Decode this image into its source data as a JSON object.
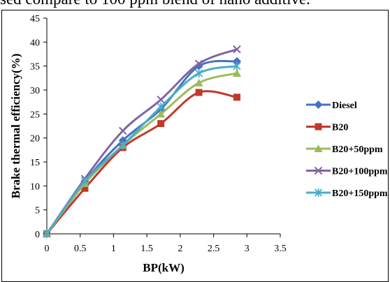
{
  "caption": "sed compare to 100 ppm blend of nano additive.",
  "chart_data": {
    "type": "line",
    "xlabel": "BP(kW)",
    "ylabel": "Brake  thermal   efficiency(%)",
    "xlim": [
      0,
      3.5
    ],
    "ylim": [
      0,
      45
    ],
    "xticks": [
      "0",
      "0.5",
      "1",
      "1.5",
      "2",
      "2.5",
      "3",
      "3.5"
    ],
    "yticks": [
      "0",
      "5",
      "10",
      "15",
      "20",
      "25",
      "30",
      "35",
      "40",
      "45"
    ],
    "x": [
      0,
      0.57,
      1.14,
      1.71,
      2.28,
      2.85
    ],
    "grid": false,
    "legend_position": "right",
    "series": [
      {
        "name": "Diesel",
        "color": "#4472C4",
        "marker": "diamond",
        "values": [
          0,
          11,
          19.5,
          26,
          35,
          36
        ]
      },
      {
        "name": "B20",
        "color": "#C0392B",
        "marker": "square",
        "values": [
          0,
          9.5,
          18,
          23,
          29.5,
          28.5
        ]
      },
      {
        "name": "B20+50ppm",
        "color": "#9BBB59",
        "marker": "triangle",
        "values": [
          0,
          10.5,
          18.5,
          25,
          31.5,
          33.5
        ]
      },
      {
        "name": "B20+100ppm",
        "color": "#8064A2",
        "marker": "x",
        "values": [
          0,
          11.5,
          21.5,
          28,
          35.5,
          38.5
        ]
      },
      {
        "name": "B20+150ppm",
        "color": "#4BACC6",
        "marker": "star",
        "values": [
          0,
          11,
          18.5,
          26.5,
          33.5,
          35
        ]
      }
    ]
  }
}
